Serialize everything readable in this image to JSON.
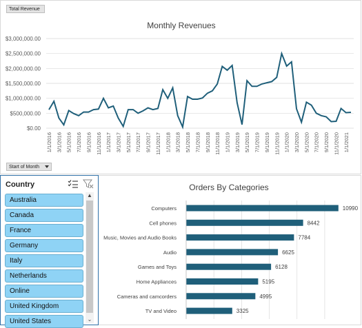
{
  "line_chart_panel": {
    "field_button_value": "Total Revenue",
    "field_button_axis": "Start of Month"
  },
  "slicer": {
    "title": "Country",
    "items": [
      "Australia",
      "Canada",
      "France",
      "Germany",
      "Italy",
      "Netherlands",
      "Online",
      "United Kingdom",
      "United States"
    ],
    "item_color": "#8fd3f5"
  },
  "chart_data": [
    {
      "type": "line",
      "title": "Monthly Revenues",
      "color": "#1f5f7a",
      "y_ticks": [
        "$0.00",
        "$500,000.00",
        "$1,000,000.00",
        "$1,500,000.00",
        "$2,000,000.00",
        "$2,500,000.00",
        "$3,000,000.00"
      ],
      "ylim": [
        0,
        3000000
      ],
      "x_tick_labels": [
        "1/1/2016",
        "3/1/2016",
        "5/1/2016",
        "7/1/2016",
        "9/1/2016",
        "11/1/2016",
        "1/1/2017",
        "3/1/2017",
        "5/1/2017",
        "7/1/2017",
        "9/1/2017",
        "11/1/2017",
        "1/1/2018",
        "3/1/2018",
        "5/1/2018",
        "7/1/2018",
        "9/1/2018",
        "11/1/2018",
        "1/1/2019",
        "3/1/2019",
        "5/1/2019",
        "7/1/2019",
        "9/1/2019",
        "11/1/2019",
        "1/1/2020",
        "3/1/2020",
        "5/1/2020",
        "7/1/2020",
        "9/1/2020",
        "11/1/2020",
        "1/1/2021"
      ],
      "values": [
        620000,
        900000,
        340000,
        110000,
        590000,
        490000,
        420000,
        540000,
        540000,
        620000,
        640000,
        1000000,
        680000,
        740000,
        340000,
        60000,
        620000,
        620000,
        500000,
        580000,
        680000,
        620000,
        660000,
        1290000,
        1000000,
        1350000,
        420000,
        40000,
        1060000,
        970000,
        970000,
        1010000,
        1170000,
        1250000,
        1480000,
        2070000,
        1940000,
        2100000,
        850000,
        120000,
        1590000,
        1400000,
        1400000,
        1480000,
        1520000,
        1560000,
        1700000,
        2500000,
        2080000,
        2220000,
        650000,
        200000,
        870000,
        770000,
        500000,
        420000,
        380000,
        220000,
        230000,
        660000,
        520000,
        530000
      ],
      "grid": true
    },
    {
      "type": "bar",
      "orientation": "horizontal",
      "title": "Orders By Categories",
      "color": "#1f5f7a",
      "categories": [
        "Computers",
        "Cell phones",
        "Music, Movies and Audio Books",
        "Audio",
        "Games and Toys",
        "Home Appliances",
        "Cameras and camcorders",
        "TV and Video"
      ],
      "values": [
        10990,
        8442,
        7784,
        6625,
        6128,
        5195,
        4995,
        3325
      ],
      "grid": true
    }
  ]
}
